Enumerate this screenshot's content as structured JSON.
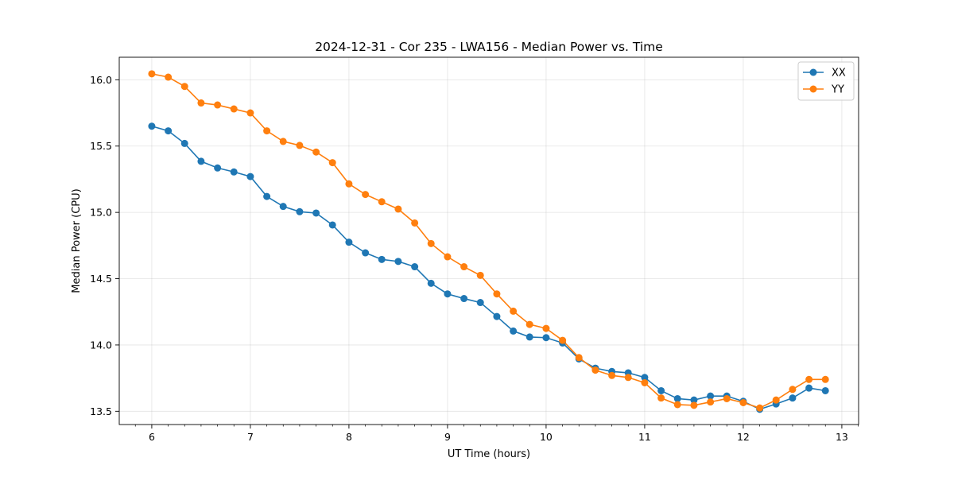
{
  "chart_data": {
    "type": "line",
    "title": "2024-12-31 - Cor 235 - LWA156 - Median Power vs. Time",
    "xlabel": "UT Time (hours)",
    "ylabel": "Median Power (CPU)",
    "xlim": [
      5.67,
      13.17
    ],
    "ylim": [
      13.4,
      16.17
    ],
    "xticks": [
      6,
      7,
      8,
      9,
      10,
      11,
      12,
      13
    ],
    "xtick_labels": [
      "6",
      "7",
      "8",
      "9",
      "10",
      "11",
      "12",
      "13"
    ],
    "yticks": [
      13.5,
      14.0,
      14.5,
      15.0,
      15.5,
      16.0
    ],
    "ytick_labels": [
      "13.5",
      "14.0",
      "14.5",
      "15.0",
      "15.5",
      "16.0"
    ],
    "grid": true,
    "legend_position": "top-right",
    "colors": {
      "XX": "#1f77b4",
      "YY": "#ff7f0e"
    },
    "x": [
      6.0,
      6.167,
      6.333,
      6.5,
      6.667,
      6.833,
      7.0,
      7.167,
      7.333,
      7.5,
      7.667,
      7.833,
      8.0,
      8.167,
      8.333,
      8.5,
      8.667,
      8.833,
      9.0,
      9.167,
      9.333,
      9.5,
      9.667,
      9.833,
      10.0,
      10.167,
      10.333,
      10.5,
      10.667,
      10.833,
      11.0,
      11.167,
      11.333,
      11.5,
      11.667,
      11.833,
      12.0,
      12.167,
      12.333,
      12.5,
      12.667,
      12.833
    ],
    "series": [
      {
        "name": "XX",
        "values": [
          15.65,
          15.615,
          15.52,
          15.385,
          15.335,
          15.305,
          15.27,
          15.12,
          15.045,
          15.005,
          14.995,
          14.905,
          14.775,
          14.695,
          14.645,
          14.63,
          14.59,
          14.465,
          14.385,
          14.35,
          14.32,
          14.215,
          14.105,
          14.06,
          14.055,
          14.015,
          13.895,
          13.825,
          13.8,
          13.79,
          13.755,
          13.655,
          13.595,
          13.585,
          13.615,
          13.615,
          13.575,
          13.515,
          13.555,
          13.6,
          13.675,
          13.655
        ]
      },
      {
        "name": "YY",
        "values": [
          16.045,
          16.02,
          15.95,
          15.825,
          15.81,
          15.78,
          15.75,
          15.615,
          15.535,
          15.505,
          15.455,
          15.375,
          15.215,
          15.135,
          15.08,
          15.025,
          14.92,
          14.765,
          14.665,
          14.59,
          14.525,
          14.385,
          14.255,
          14.155,
          14.125,
          14.035,
          13.905,
          13.81,
          13.77,
          13.755,
          13.715,
          13.6,
          13.55,
          13.545,
          13.57,
          13.595,
          13.565,
          13.525,
          13.585,
          13.665,
          13.74,
          13.74
        ]
      }
    ]
  }
}
